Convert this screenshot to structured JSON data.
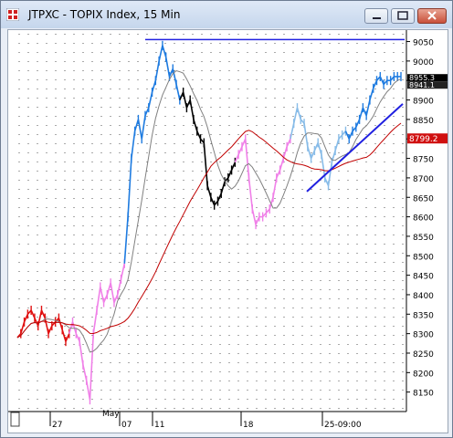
{
  "window": {
    "title": "JTPXC - TOPIX Index, 15 Min",
    "buttons": [
      "minimize",
      "maximize",
      "close"
    ]
  },
  "chart_data": {
    "type": "line",
    "title": "JTPXC - TOPIX Index, 15 Min",
    "ylim": [
      8100,
      9070
    ],
    "y_ticks": [
      8150,
      8200,
      8250,
      8300,
      8350,
      8400,
      8450,
      8500,
      8550,
      8600,
      8650,
      8700,
      8750,
      8800,
      8850,
      8900,
      8950,
      9000,
      9050
    ],
    "x_labels": [
      "27",
      "May",
      "07",
      "11",
      "18",
      "25-09:00"
    ],
    "price_labels": {
      "last_price": "8955.3",
      "last_price_alt": "8941.1",
      "moving_average": "8799.2"
    },
    "colors": {
      "price_up": "#1e7be0",
      "price_down": "#000000",
      "price_red": "#e01010",
      "price_pink": "#f080e8",
      "price_lightblue": "#88bce8",
      "ma_short": "#808080",
      "ma_long": "#c00000",
      "trendline": "#2020e0",
      "label_last_bg": "#000000",
      "label_ma_bg": "#d01010"
    },
    "resistance_line_value": 9055,
    "trendline_values": [
      8665,
      8890
    ],
    "series": [],
    "price_path": [
      [
        8290,
        8300,
        8330,
        8350,
        8360,
        8340,
        8320,
        8360,
        8340,
        8300,
        8320,
        8330,
        8340,
        8310,
        8280,
        8300
      ],
      [
        8330,
        8300,
        8280,
        8220,
        8180,
        8130,
        8300,
        8360,
        8420,
        8380,
        8400,
        8430,
        8380,
        8400,
        8440,
        8480
      ],
      [
        8600,
        8750,
        8820,
        8850,
        8800,
        8860,
        8880,
        8920,
        8950,
        9000,
        9040,
        9010,
        8960,
        8980,
        8940,
        8900
      ],
      [
        8920,
        8880,
        8900,
        8850,
        8820,
        8800,
        8790,
        8680,
        8650,
        8630,
        8640,
        8660,
        8690,
        8700,
        8720,
        8740
      ],
      [
        8760,
        8780,
        8800,
        8700,
        8620,
        8580,
        8600,
        8600,
        8610,
        8620,
        8650,
        8700,
        8720,
        8750,
        8780,
        8800
      ],
      [
        8840,
        8880,
        8850,
        8840,
        8780,
        8750,
        8770,
        8790,
        8760,
        8700,
        8680,
        8740,
        8770,
        8800,
        8810,
        8820
      ],
      [
        8800,
        8820,
        8830,
        8850,
        8880,
        8860,
        8900,
        8930,
        8950,
        8960,
        8940,
        8950,
        8950,
        8960,
        8960,
        8960
      ]
    ]
  }
}
